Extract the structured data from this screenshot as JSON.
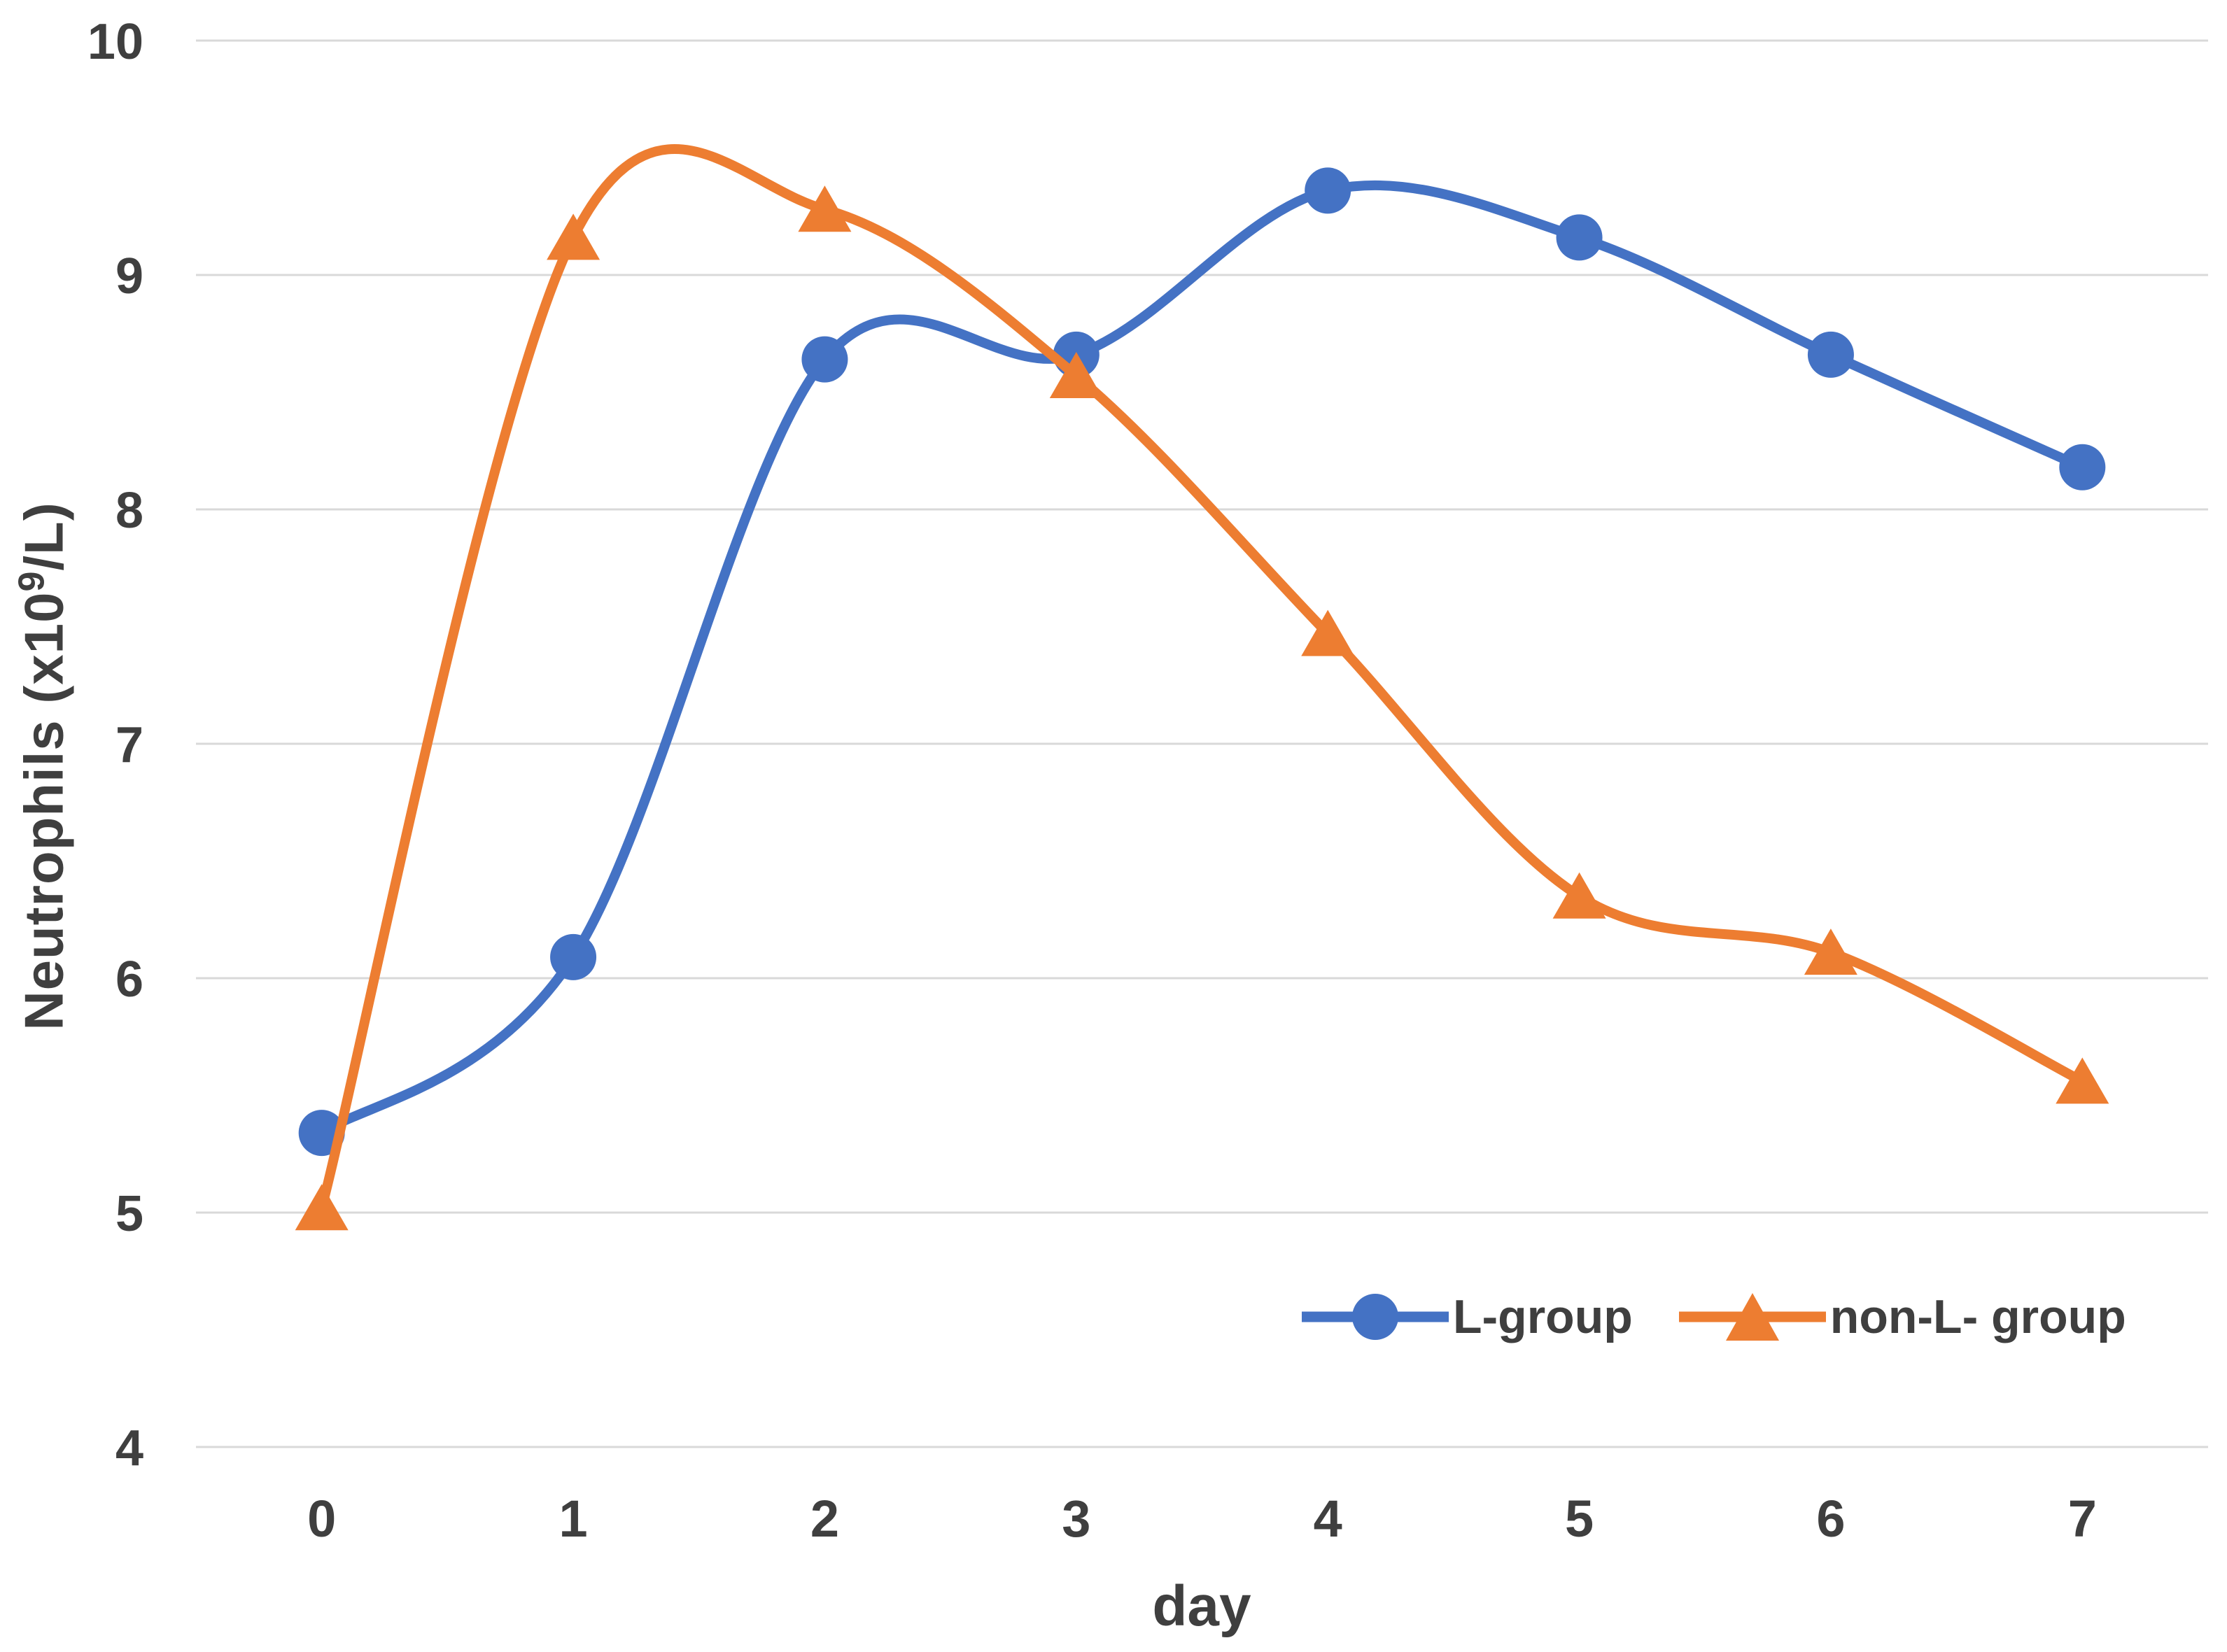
{
  "chart_data": {
    "type": "line",
    "title": "",
    "xlabel": "day",
    "ylabel": "Neutrophils (x10⁹/L)",
    "x_categories": [
      "0",
      "1",
      "2",
      "3",
      "4",
      "5",
      "6",
      "7"
    ],
    "series": [
      {
        "name": "L-group",
        "color": "#4472C4",
        "marker": "circle",
        "values": [
          5.34,
          6.09,
          8.64,
          8.66,
          9.36,
          9.16,
          8.66,
          8.18
        ]
      },
      {
        "name": "non-L- group",
        "color": "#ED7D31",
        "marker": "triangle",
        "values": [
          5.02,
          9.16,
          9.28,
          8.57,
          7.47,
          6.35,
          6.11,
          5.56
        ]
      }
    ],
    "ylim": [
      4,
      10
    ],
    "yticks": [
      4,
      5,
      6,
      7,
      8,
      9,
      10
    ],
    "grid": true,
    "smooth": true,
    "legend_position": "inside-bottom-right"
  },
  "axis": {
    "x_title": "day",
    "y_title_prefix": "Neutrophils (x10",
    "y_title_sup": "9",
    "y_title_suffix": "/L)"
  },
  "colors": {
    "series_blue": "#4472C4",
    "series_orange": "#ED7D31",
    "gridline": "#D9D9D9",
    "tick_text": "#3F3F3F",
    "background": "#FFFFFF"
  }
}
